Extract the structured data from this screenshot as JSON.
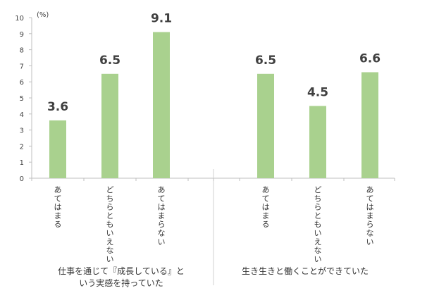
{
  "chart_data": {
    "type": "bar",
    "unit": "(%)",
    "ylim": [
      0,
      10
    ],
    "yticks": [
      "0",
      "1",
      "2",
      "3",
      "4",
      "5",
      "6",
      "7",
      "8",
      "9",
      "10"
    ],
    "categories": [
      "あてはまる",
      "どちらともいえない",
      "あてはまらない",
      "あてはまる",
      "どちらともいえない",
      "あてはまらない"
    ],
    "values": [
      3.6,
      6.5,
      9.1,
      6.5,
      4.5,
      6.6
    ],
    "value_labels": [
      "3.6",
      "6.5",
      "9.1",
      "6.5",
      "4.5",
      "6.6"
    ],
    "groups": [
      {
        "lines": [
          "仕事を通じて『成長している』と",
          "いう実感を持っていた"
        ]
      },
      {
        "lines": [
          "生き生きと働くことができていた"
        ]
      }
    ],
    "bar_color": "#a9d18e",
    "grid": false
  }
}
